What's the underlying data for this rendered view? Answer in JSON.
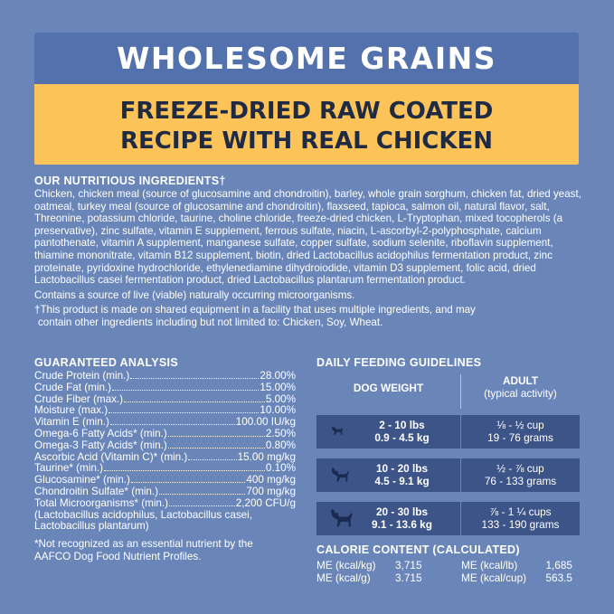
{
  "banner": {
    "title": "WHOLESOME GRAINS",
    "subtitle_line1": "FREEZE-DRIED RAW COATED",
    "subtitle_line2": "RECIPE WITH REAL CHICKEN"
  },
  "ingredients": {
    "heading": "OUR NUTRITIOUS INGREDIENTS†",
    "text": "Chicken, chicken meal (source of glucosamine and chondroitin), barley, whole grain sorghum, chicken fat, dried yeast, oatmeal, turkey meal (source of glucosamine and chondroitin), flaxseed, tapioca, salmon oil, natural flavor, salt, Threonine, potassium chloride, taurine, choline chloride, freeze-dried chicken, L-Tryptophan, mixed tocopherols (a preservative), zinc sulfate, vitamin E supplement, ferrous sulfate, niacin, L-ascorbyl-2-polyphosphate, calcium pantothenate, vitamin A supplement, manganese sulfate, copper sulfate, sodium selenite, riboflavin supplement, thiamine mononitrate, vitamin B12 supplement, biotin, dried Lactobacillus acidophilus fermentation product, zinc proteinate, pyridoxine hydrochloride, ethylenediamine dihydroiodide, vitamin D3 supplement, folic acid, dried Lactobacillus casei fermentation product, dried Lactobacillus plantarum fermentation product.",
    "live": "Contains a source of live (viable) naturally occurring microorganisms.",
    "note_line1": "†This product is made on shared equipment in a facility that uses multiple ingredients, and may",
    "note_line2": "contain other ingredients including but not limited to: Chicken, Soy, Wheat."
  },
  "guaranteed_analysis": {
    "heading": "GUARANTEED ANALYSIS",
    "rows": [
      {
        "label": "Crude Protein (min.)",
        "value": "28.00%"
      },
      {
        "label": "Crude Fat (min.)",
        "value": "15.00%"
      },
      {
        "label": "Crude Fiber (max.)",
        "value": "5.00%"
      },
      {
        "label": "Moisture (max.)",
        "value": "10.00%"
      },
      {
        "label": "Vitamin E (min.)",
        "value": "100.00 IU/kg"
      },
      {
        "label": "Omega-6 Fatty Acids* (min.)",
        "value": "2.50%"
      },
      {
        "label": "Omega-3 Fatty Acids* (min.)",
        "value": "0.80%"
      },
      {
        "label": "Ascorbic Acid (Vitamin C)* (min.)",
        "value": "15.00 mg/kg"
      },
      {
        "label": "Taurine* (min.)",
        "value": "0.10%"
      },
      {
        "label": "Glucosamine* (min.)",
        "value": "400 mg/kg"
      },
      {
        "label": "Chondroitin Sulfate* (min.)",
        "value": "700 mg/kg"
      },
      {
        "label": "Total Microorganisms* (min.)",
        "value": "2,200 CFU/g"
      }
    ],
    "extra_line1": "(Lactobacillus acidophilus, Lactobacillus casei,",
    "extra_line2": "Lactobacillus plantarum)",
    "foot_line1": "*Not recognized as an essential nutrient by the",
    "foot_line2": "AAFCO Dog Food Nutrient Profiles."
  },
  "feeding": {
    "heading": "DAILY FEEDING GUIDELINES",
    "col_dog": "DOG WEIGHT",
    "col_adult": "ADULT",
    "col_adult_sub": "(typical activity)",
    "rows": [
      {
        "lbs": "2 - 10 lbs",
        "kg": "0.9 - 4.5 kg",
        "cups": "⅛ - ½ cup",
        "grams": "19 - 76 grams",
        "icon": "small-dog-icon"
      },
      {
        "lbs": "10 - 20 lbs",
        "kg": "4.5 - 9.1 kg",
        "cups": "½ - ⅞ cup",
        "grams": "76 - 133 grams",
        "icon": "medium-dog-icon"
      },
      {
        "lbs": "20 - 30 lbs",
        "kg": "9.1 - 13.6 kg",
        "cups": "⅞ - 1 ¼ cups",
        "grams": "133 - 190 grams",
        "icon": "large-dog-icon"
      }
    ]
  },
  "calorie": {
    "heading": "CALORIE CONTENT (CALCULATED)",
    "rows": [
      {
        "k1": "ME (kcal/kg)",
        "v1": "3,715",
        "k2": "ME (kcal/lb)",
        "v2": "1,685"
      },
      {
        "k1": "ME (kcal/g)",
        "v1": "3.715",
        "k2": "ME (kcal/cup)",
        "v2": "563.5"
      }
    ]
  },
  "colors": {
    "background": "#6a86b9",
    "banner_blue": "#5371ad",
    "banner_yellow": "#fcc458",
    "row_dark": "#3d5488"
  }
}
